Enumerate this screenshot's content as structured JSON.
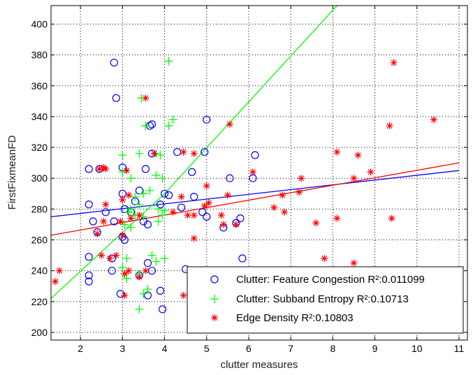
{
  "chart_data": {
    "type": "scatter",
    "xlabel": "clutter measures",
    "ylabel": "FirstFixmeanFD",
    "xlim": [
      1.3,
      11.2
    ],
    "ylim": [
      195,
      412
    ],
    "xticks": [
      2,
      3,
      4,
      5,
      6,
      7,
      8,
      9,
      10,
      11
    ],
    "yticks": [
      200,
      220,
      240,
      260,
      280,
      300,
      320,
      340,
      360,
      380,
      400
    ],
    "grid": true,
    "legend_position": "bottom-right",
    "series": [
      {
        "name": "Clutter: Feature Congestion R²:0.011099",
        "marker": "circle",
        "color": "#0000ff",
        "points": [
          [
            2.8,
            375
          ],
          [
            2.85,
            352
          ],
          [
            3.65,
            334
          ],
          [
            3.7,
            335
          ],
          [
            4.3,
            317
          ],
          [
            5.0,
            338
          ],
          [
            2.2,
            306
          ],
          [
            2.45,
            306
          ],
          [
            3.0,
            307
          ],
          [
            3.55,
            306
          ],
          [
            3.7,
            316
          ],
          [
            4.95,
            317
          ],
          [
            6.15,
            315
          ],
          [
            4.0,
            290
          ],
          [
            4.1,
            289
          ],
          [
            4.7,
            288
          ],
          [
            4.65,
            304
          ],
          [
            5.55,
            300
          ],
          [
            6.1,
            300
          ],
          [
            2.3,
            272
          ],
          [
            2.6,
            278
          ],
          [
            2.8,
            272
          ],
          [
            3.0,
            290
          ],
          [
            3.05,
            280
          ],
          [
            3.2,
            278
          ],
          [
            3.4,
            292
          ],
          [
            3.5,
            272
          ],
          [
            3.3,
            285
          ],
          [
            3.6,
            270
          ],
          [
            3.9,
            283
          ],
          [
            4.4,
            281
          ],
          [
            4.9,
            278
          ],
          [
            5.0,
            275
          ],
          [
            5.4,
            268
          ],
          [
            5.7,
            271
          ],
          [
            5.8,
            274
          ],
          [
            2.2,
            283
          ],
          [
            2.4,
            265
          ],
          [
            2.2,
            249
          ],
          [
            2.2,
            237
          ],
          [
            2.2,
            233
          ],
          [
            2.75,
            248
          ],
          [
            2.75,
            240
          ],
          [
            3.0,
            262
          ],
          [
            3.05,
            260
          ],
          [
            3.6,
            245
          ],
          [
            3.7,
            240
          ],
          [
            2.95,
            225
          ],
          [
            3.4,
            237
          ],
          [
            3.6,
            224
          ],
          [
            3.9,
            227
          ],
          [
            3.95,
            215
          ],
          [
            4.5,
            241
          ],
          [
            5.85,
            248
          ]
        ]
      },
      {
        "name": "Clutter: Subband Entropy R²:0.10713",
        "marker": "plus",
        "color": "#00ff00",
        "points": [
          [
            4.1,
            376
          ],
          [
            3.45,
            352
          ],
          [
            3.55,
            334
          ],
          [
            4.1,
            334
          ],
          [
            4.2,
            338
          ],
          [
            3.0,
            315
          ],
          [
            3.4,
            316
          ],
          [
            3.8,
            316
          ],
          [
            3.9,
            315
          ],
          [
            3.0,
            304
          ],
          [
            3.2,
            300
          ],
          [
            3.8,
            302
          ],
          [
            3.95,
            300
          ],
          [
            3.65,
            292
          ],
          [
            3.5,
            290
          ],
          [
            3.3,
            288
          ],
          [
            3.4,
            283
          ],
          [
            3.2,
            280
          ],
          [
            3.15,
            278
          ],
          [
            3.3,
            276
          ],
          [
            3.5,
            275
          ],
          [
            3.85,
            280
          ],
          [
            4.0,
            279
          ],
          [
            3.85,
            272
          ],
          [
            3.95,
            276
          ],
          [
            3.05,
            270
          ],
          [
            3.2,
            268
          ],
          [
            3.1,
            248
          ],
          [
            3.7,
            250
          ],
          [
            3.8,
            246
          ],
          [
            4.0,
            248
          ],
          [
            3.0,
            242
          ],
          [
            3.05,
            238
          ],
          [
            3.1,
            235
          ],
          [
            3.4,
            238
          ],
          [
            3.5,
            225
          ],
          [
            3.6,
            228
          ],
          [
            3.4,
            215
          ]
        ]
      },
      {
        "name": "Edge Density R²:0.10803",
        "marker": "star",
        "color": "#ff0000",
        "points": [
          [
            1.4,
            233
          ],
          [
            1.5,
            240
          ],
          [
            2.45,
            306
          ],
          [
            2.55,
            307
          ],
          [
            2.6,
            306
          ],
          [
            2.4,
            264
          ],
          [
            2.55,
            272
          ],
          [
            2.6,
            283
          ],
          [
            2.5,
            250
          ],
          [
            2.7,
            248
          ],
          [
            2.85,
            250
          ],
          [
            3.1,
            305
          ],
          [
            3.0,
            286
          ],
          [
            3.15,
            289
          ],
          [
            2.95,
            272
          ],
          [
            3.2,
            274
          ],
          [
            3.0,
            263
          ],
          [
            3.4,
            276
          ],
          [
            3.55,
            352
          ],
          [
            3.75,
            316
          ],
          [
            4.45,
            317
          ],
          [
            4.4,
            288
          ],
          [
            4.7,
            316
          ],
          [
            5.55,
            335
          ],
          [
            5.0,
            295
          ],
          [
            5.5,
            289
          ],
          [
            6.1,
            304
          ],
          [
            4.55,
            276
          ],
          [
            4.7,
            276
          ],
          [
            4.2,
            278
          ],
          [
            4.95,
            282
          ],
          [
            5.05,
            284
          ],
          [
            5.35,
            276
          ],
          [
            5.4,
            270
          ],
          [
            5.7,
            270
          ],
          [
            4.7,
            261
          ],
          [
            3.05,
            238
          ],
          [
            3.15,
            240
          ],
          [
            3.4,
            236
          ],
          [
            3.55,
            240
          ],
          [
            3.05,
            224
          ],
          [
            4.45,
            224
          ],
          [
            6.6,
            281
          ],
          [
            6.8,
            289
          ],
          [
            6.85,
            278
          ],
          [
            6.8,
            240
          ],
          [
            7.25,
            300
          ],
          [
            7.2,
            291
          ],
          [
            7.6,
            271
          ],
          [
            7.8,
            248
          ],
          [
            8.1,
            317
          ],
          [
            8.6,
            315
          ],
          [
            8.1,
            274
          ],
          [
            8.5,
            300
          ],
          [
            8.9,
            304
          ],
          [
            8.5,
            245
          ],
          [
            9.35,
            334
          ],
          [
            9.45,
            375
          ],
          [
            9.4,
            274
          ],
          [
            10.4,
            338
          ]
        ]
      }
    ],
    "fit_lines": [
      {
        "series": "Clutter: Feature Congestion R²:0.011099",
        "color": "#0000ff",
        "points": [
          [
            1.3,
            275
          ],
          [
            11.0,
            305
          ]
        ]
      },
      {
        "series": "Clutter: Subband Entropy R²:0.10713",
        "color": "#00ff00",
        "points": [
          [
            1.3,
            222
          ],
          [
            4.0,
            290
          ],
          [
            8.1,
            412
          ]
        ]
      },
      {
        "series": "Edge Density R²:0.10803",
        "color": "#ff0000",
        "points": [
          [
            1.3,
            263
          ],
          [
            11.0,
            310
          ]
        ]
      }
    ]
  }
}
